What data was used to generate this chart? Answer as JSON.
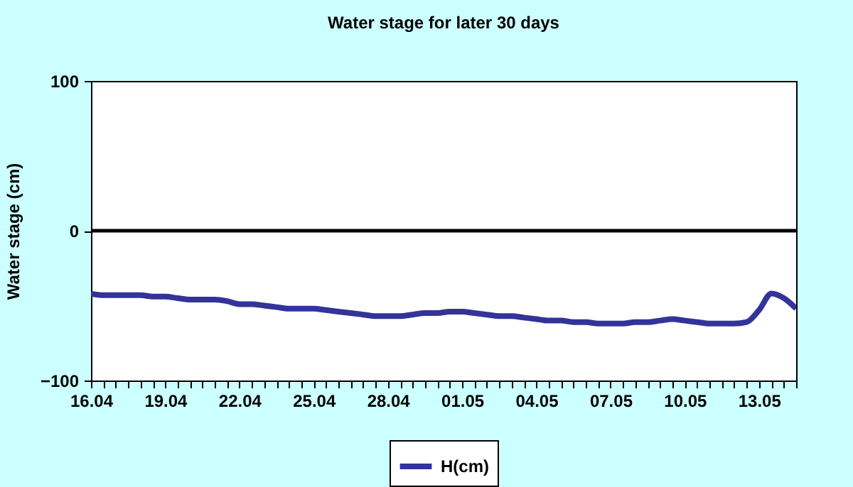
{
  "chart_data": {
    "type": "line",
    "title": "Water stage for later 30 days",
    "ylabel": "Water stage (cm)",
    "categories": [
      "16.04",
      null,
      null,
      null,
      null,
      null,
      "19.04",
      null,
      null,
      null,
      null,
      null,
      "22.04",
      null,
      null,
      null,
      null,
      null,
      "25.04",
      null,
      null,
      null,
      null,
      null,
      "28.04",
      null,
      null,
      null,
      null,
      null,
      "01.05",
      null,
      null,
      null,
      null,
      null,
      "04.05",
      null,
      null,
      null,
      null,
      null,
      "07.05",
      null,
      null,
      null,
      null,
      null,
      "10.05",
      null,
      null,
      null,
      null,
      null,
      "13.05",
      null,
      null,
      null
    ],
    "series": [
      {
        "name": "H(cm)",
        "color": "#333399",
        "values": [
          -42,
          -43,
          -43,
          -43,
          -43,
          -44,
          -44,
          -45,
          -46,
          -46,
          -46,
          -47,
          -49,
          -49,
          -50,
          -51,
          -52,
          -52,
          -52,
          -53,
          -54,
          -55,
          -56,
          -57,
          -57,
          -57,
          -56,
          -55,
          -55,
          -54,
          -54,
          -55,
          -56,
          -57,
          -57,
          -58,
          -59,
          -60,
          -60,
          -61,
          -61,
          -62,
          -62,
          -62,
          -61,
          -61,
          -60,
          -59,
          -60,
          -61,
          -62,
          -62,
          -62,
          -61,
          -53,
          -42,
          -45,
          -52
        ]
      }
    ],
    "ylim": [
      -100,
      100
    ],
    "yticks": [
      -100,
      0,
      100
    ],
    "grid": false,
    "legend": "bottom",
    "ref_lines": [
      {
        "axis": "y",
        "value": 0,
        "color": "#000000"
      }
    ]
  }
}
